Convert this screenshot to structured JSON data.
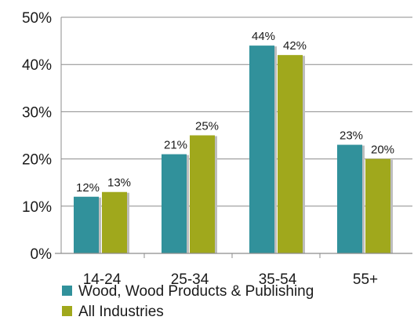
{
  "chart_data": {
    "type": "bar",
    "title": "",
    "xlabel": "",
    "ylabel": "",
    "categories": [
      "14-24",
      "25-34",
      "35-54",
      "55+"
    ],
    "series": [
      {
        "name": "Wood, Wood Products & Publishing",
        "values": [
          12,
          21,
          44,
          23
        ],
        "labels": [
          "12%",
          "21%",
          "44%",
          "23%"
        ],
        "color": "#31919b"
      },
      {
        "name": "All Industries",
        "values": [
          13,
          25,
          42,
          20
        ],
        "labels": [
          "13%",
          "25%",
          "42%",
          "20%"
        ],
        "color": "#a0a81c"
      }
    ],
    "ylim": [
      0,
      50
    ],
    "yticks": [
      0,
      10,
      20,
      30,
      40,
      50
    ],
    "ytick_labels": [
      "0%",
      "10%",
      "20%",
      "30%",
      "40%",
      "50%"
    ],
    "grid": true,
    "legend_position": "bottom"
  }
}
